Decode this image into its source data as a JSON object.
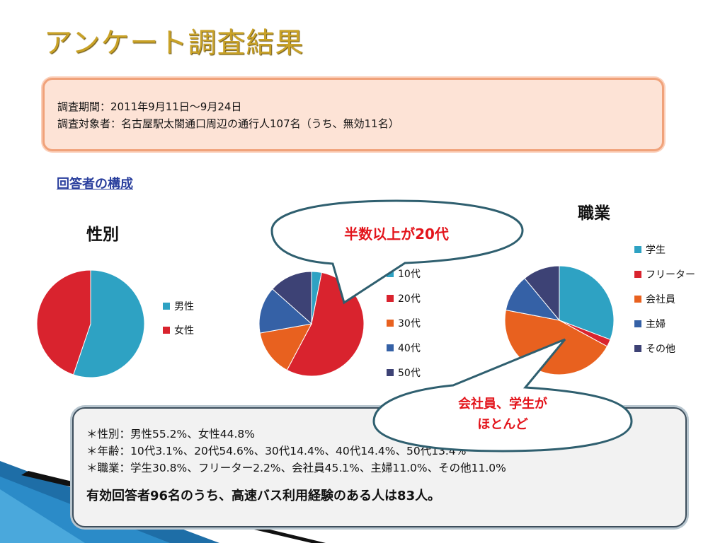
{
  "title": "アンケート調査結果",
  "survey_info": {
    "period": "調査期間：2011年9月11日～9月24日",
    "target": "調査対象者：名古屋駅太閤通口周辺の通行人107名（うち、無効11名）"
  },
  "section_label": "回答者の構成",
  "charts": {
    "gender_title": "性別",
    "occupation_title": "職業"
  },
  "callouts": {
    "age": "半数以上が20代",
    "occupation_line1": "会社員、学生が",
    "occupation_line2": "ほとんど"
  },
  "summary": {
    "gender": "＊性別：男性55.2%、女性44.8%",
    "age": "＊年齢：10代3.1%、20代54.6%、30代14.4%、40代14.4%、50代13.4%",
    "occupation": "＊職業：学生30.8%、フリーター2.2%、会社員45.1%、主婦11.0%、その他11.0%",
    "conclusion": "有効回答者96名のうち、高速バス利用経験のある人は83人。"
  },
  "colors": {
    "blue_cyan": "#2ea2c3",
    "red": "#d9232e",
    "orange": "#e8611f",
    "steel_blue": "#3561a6",
    "navy": "#3d4275"
  },
  "chart_data": [
    {
      "type": "pie",
      "title": "性別",
      "legend_position": "right",
      "slices": [
        {
          "label": "男性",
          "value": 55.2,
          "color": "#2ea2c3"
        },
        {
          "label": "女性",
          "value": 44.8,
          "color": "#d9232e"
        }
      ]
    },
    {
      "type": "pie",
      "title": "",
      "legend_position": "right",
      "slices": [
        {
          "label": "10代",
          "value": 3.1,
          "color": "#2ea2c3"
        },
        {
          "label": "20代",
          "value": 54.6,
          "color": "#d9232e"
        },
        {
          "label": "30代",
          "value": 14.4,
          "color": "#e8611f"
        },
        {
          "label": "40代",
          "value": 14.4,
          "color": "#3561a6"
        },
        {
          "label": "50代",
          "value": 13.4,
          "color": "#3d4275"
        }
      ]
    },
    {
      "type": "pie",
      "title": "職業",
      "legend_position": "right",
      "slices": [
        {
          "label": "学生",
          "value": 30.8,
          "color": "#2ea2c3"
        },
        {
          "label": "フリーター",
          "value": 2.2,
          "color": "#d9232e"
        },
        {
          "label": "会社員",
          "value": 45.1,
          "color": "#e8611f"
        },
        {
          "label": "主婦",
          "value": 11.0,
          "color": "#3561a6"
        },
        {
          "label": "その他",
          "value": 11.0,
          "color": "#3d4275"
        }
      ]
    }
  ]
}
